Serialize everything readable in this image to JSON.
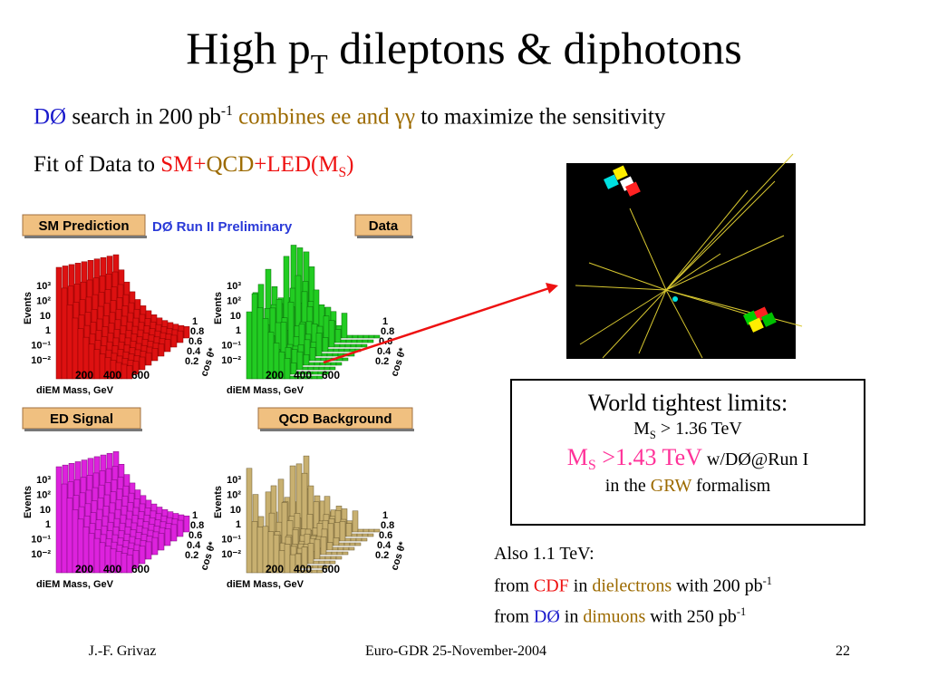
{
  "title": [
    "High p",
    "T",
    " dileptons & diphotons"
  ],
  "line1": [
    "DØ",
    " search in 200 pb",
    "-1",
    " combines ee and γγ",
    " to maximize the sensitivity"
  ],
  "line2": [
    "Fit of Data to ",
    "SM+",
    "QCD",
    "+LED(M",
    "S",
    ")"
  ],
  "plots": {
    "preliminary": "DØ Run II Preliminary",
    "panels": [
      "SM Prediction",
      "Data",
      "ED Signal",
      "QCD Background"
    ],
    "y_label": "Events",
    "y_ticks": [
      "10³",
      "10²",
      "10",
      "1",
      "10⁻¹",
      "10⁻²"
    ],
    "x_label": "diEM Mass, GeV",
    "x_ticks": [
      "200",
      "400",
      "600"
    ],
    "z_label": "cos θ*",
    "z_ticks": [
      "1",
      "0.8",
      "0.6",
      "0.4",
      "0.2"
    ]
  },
  "box": {
    "heading": "World tightest limits:",
    "line1": [
      "M",
      "S",
      " > 1.36 TeV"
    ],
    "line2": [
      "M",
      "S",
      " >1.43 TeV",
      " w/DØ@Run I"
    ],
    "line3": [
      "in the ",
      "GRW",
      " formalism"
    ]
  },
  "also": {
    "line1": "Also 1.1 TeV:",
    "line2": [
      "from ",
      "CDF",
      " in ",
      "dielectrons",
      " with 200 pb",
      "-1"
    ],
    "line3": [
      "from ",
      "DØ",
      " in ",
      "dimuons",
      " with 250 pb",
      "-1"
    ]
  },
  "footer": {
    "author": "J.-F. Grivaz",
    "event": "Euro-GDR 25-November-2004",
    "page": "22"
  }
}
